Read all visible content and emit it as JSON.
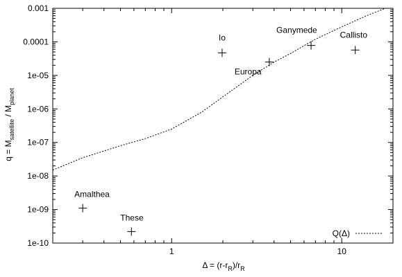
{
  "chart_data": {
    "type": "scatter",
    "x_scale": "log",
    "y_scale": "log",
    "xlim": [
      0.2,
      20
    ],
    "ylim": [
      1e-10,
      0.001
    ],
    "grid": false,
    "legend_position": "bottom-right",
    "x_ticks": [
      {
        "value": 1,
        "label": "1"
      },
      {
        "value": 10,
        "label": "10"
      }
    ],
    "y_ticks": [
      {
        "value": 1e-10,
        "label": "1e-10"
      },
      {
        "value": 1e-09,
        "label": "1e-09"
      },
      {
        "value": 1e-08,
        "label": "1e-08"
      },
      {
        "value": 1e-07,
        "label": "1e-07"
      },
      {
        "value": 1e-06,
        "label": "1e-06"
      },
      {
        "value": 1e-05,
        "label": "1e-05"
      },
      {
        "value": 0.0001,
        "label": "0.0001"
      },
      {
        "value": 0.001,
        "label": "0.001"
      }
    ],
    "xlabel": {
      "pre": "Δ = (r-r",
      "sub": "R",
      "post": ")/r",
      "sub2": "R"
    },
    "ylabel": {
      "pre": "q = M",
      "sub": "satellite",
      "mid": " / M",
      "sub2": "planet"
    },
    "points": [
      {
        "name": "Amalthea",
        "x": 0.3,
        "y": 1.1e-09
      },
      {
        "name": "These",
        "x": 0.58,
        "y": 2.2e-10
      },
      {
        "name": "Io",
        "x": 1.98,
        "y": 4.7e-05
      },
      {
        "name": "Europa",
        "x": 3.75,
        "y": 2.5e-05
      },
      {
        "name": "Ganymede",
        "x": 6.6,
        "y": 7.8e-05
      },
      {
        "name": "Callisto",
        "x": 12.0,
        "y": 5.7e-05
      }
    ],
    "series": [
      {
        "name": "Q(Δ)",
        "style": "dotted",
        "x": [
          0.2,
          0.3,
          0.5,
          0.7,
          1.0,
          1.5,
          2.0,
          3.0,
          4.0,
          5.0,
          7.0,
          10.0,
          14.0,
          18.0
        ],
        "y": [
          1.5e-08,
          3.5e-08,
          8e-08,
          1.3e-07,
          2.5e-07,
          8e-07,
          2.3e-06,
          1e-05,
          2.5e-05,
          4.5e-05,
          0.00012,
          0.00028,
          0.0006,
          0.001
        ]
      }
    ]
  }
}
